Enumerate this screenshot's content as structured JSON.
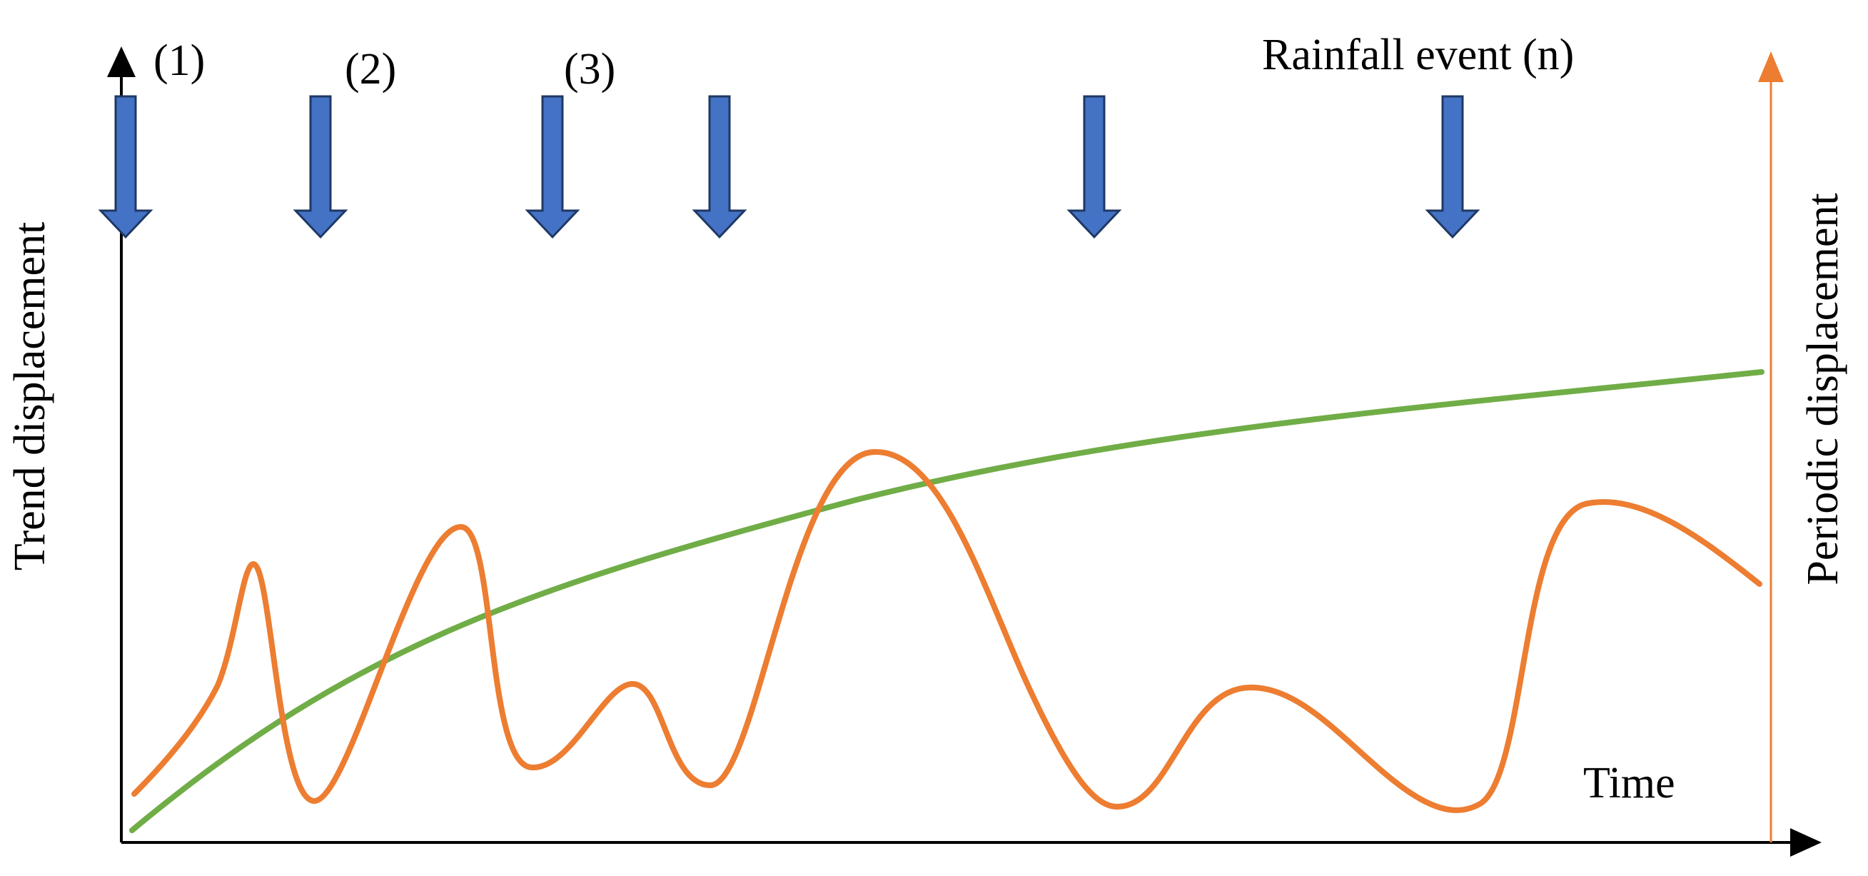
{
  "labels": {
    "event_1": "(1)",
    "event_2": "(2)",
    "event_3": "(3)",
    "event_n": "Rainfall event (n)",
    "left_axis": "Trend displacement",
    "right_axis": "Periodic displacement",
    "x_axis": "Time"
  },
  "colors": {
    "axis": "#000000",
    "right_axis": "#ED7D31",
    "trend_curve": "#70AD47",
    "periodic_curve": "#ED7D31",
    "arrow_fill": "#4472C4",
    "arrow_stroke": "#1F3864"
  },
  "rainfall_event_count": 6
}
